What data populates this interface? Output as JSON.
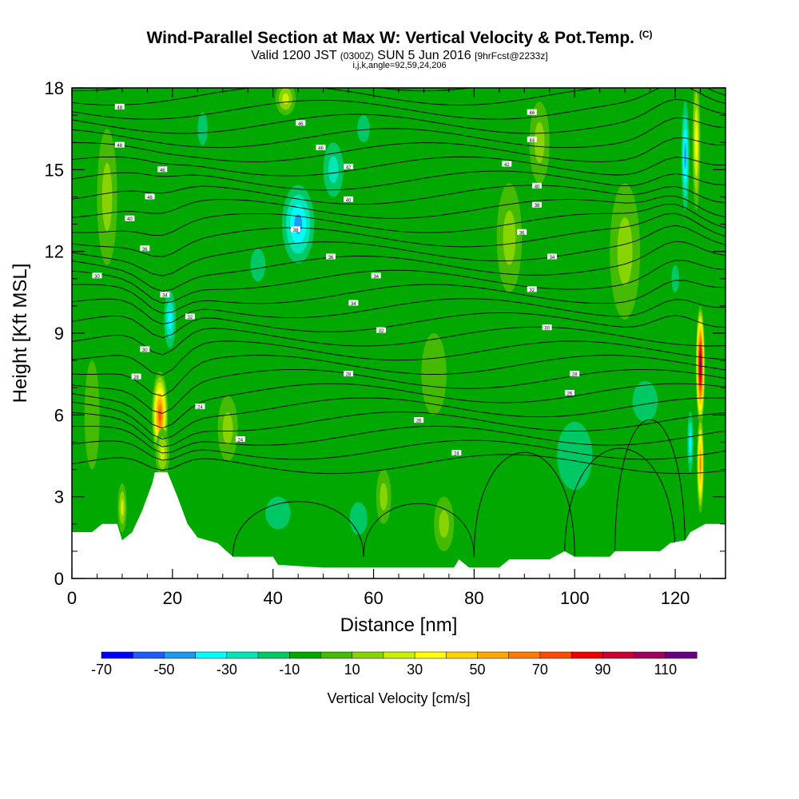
{
  "chart_data": {
    "type": "heatmap",
    "title_main": "Wind-Parallel Section at Max W: Vertical Velocity & Pot.Temp.",
    "title_mark": "(C)",
    "subtitle_valid": "Valid 1200 JST",
    "subtitle_utc": "(0300Z)",
    "subtitle_date": "SUN 5 Jun 2016",
    "subtitle_fcst": "[9hrFcst@2233z]",
    "subtitle_params": "i,j,k,angle=92,59,24,206",
    "xlabel": "Distance [nm]",
    "ylabel": "Height [Kft MSL]",
    "xlim": [
      0,
      130
    ],
    "ylim": [
      0,
      18
    ],
    "x_ticks": [
      "0",
      "20",
      "40",
      "60",
      "80",
      "100",
      "120"
    ],
    "y_ticks": [
      "0",
      "3",
      "6",
      "9",
      "12",
      "15",
      "18"
    ],
    "colorbar": {
      "label": "Vertical Velocity [cm/s]",
      "levels": [
        -70,
        -60,
        -50,
        -40,
        -30,
        -20,
        -10,
        0,
        10,
        20,
        30,
        40,
        50,
        60,
        70,
        80,
        90,
        100,
        110,
        120
      ],
      "tick_labels": [
        "-70",
        "-50",
        "-30",
        "-10",
        "10",
        "30",
        "50",
        "70",
        "90",
        "110"
      ],
      "colors": [
        "#0000ff",
        "#1e5cff",
        "#1a9af0",
        "#00ffff",
        "#00e6b4",
        "#00c864",
        "#00a800",
        "#44bb00",
        "#88d400",
        "#ccee00",
        "#ffff00",
        "#ffd200",
        "#ffa800",
        "#ff7a00",
        "#ff4a00",
        "#ee0000",
        "#cc0030",
        "#a0005a",
        "#6a0080"
      ]
    },
    "terrain_kft": [
      [
        0,
        1.7
      ],
      [
        4,
        1.7
      ],
      [
        6,
        2.0
      ],
      [
        9,
        2.0
      ],
      [
        10,
        1.4
      ],
      [
        12,
        1.7
      ],
      [
        14,
        2.5
      ],
      [
        15,
        3.0
      ],
      [
        16,
        3.5
      ],
      [
        16.5,
        3.9
      ],
      [
        19,
        3.9
      ],
      [
        21,
        3.0
      ],
      [
        23,
        2.0
      ],
      [
        25,
        1.5
      ],
      [
        29,
        1.3
      ],
      [
        32,
        0.8
      ],
      [
        40,
        0.8
      ],
      [
        41,
        0.5
      ],
      [
        50,
        0.4
      ],
      [
        70,
        0.4
      ],
      [
        76,
        0.4
      ],
      [
        77,
        0.7
      ],
      [
        79,
        0.4
      ],
      [
        85,
        0.4
      ],
      [
        87,
        0.7
      ],
      [
        95,
        0.7
      ],
      [
        98,
        1.0
      ],
      [
        100,
        0.8
      ],
      [
        107,
        0.8
      ],
      [
        108,
        1.0
      ],
      [
        117,
        1.0
      ],
      [
        119,
        1.3
      ],
      [
        122,
        1.4
      ],
      [
        123,
        1.7
      ],
      [
        126,
        2.0
      ],
      [
        130,
        2.0
      ]
    ],
    "vertical_velocity_features": [
      {
        "x": 17.5,
        "y": 6.0,
        "dx": 1.6,
        "dy": 1.6,
        "w": 75
      },
      {
        "x": 18.0,
        "y": 4.6,
        "dx": 1.4,
        "dy": 0.9,
        "w": 25
      },
      {
        "x": 10.0,
        "y": 2.6,
        "dx": 0.9,
        "dy": 0.9,
        "w": 30
      },
      {
        "x": 19.5,
        "y": 9.5,
        "dx": 1.6,
        "dy": 1.4,
        "w": -35
      },
      {
        "x": 45.0,
        "y": 13.0,
        "dx": 4.0,
        "dy": 1.8,
        "w": -45
      },
      {
        "x": 52.0,
        "y": 15.0,
        "dx": 3.0,
        "dy": 1.5,
        "w": -28
      },
      {
        "x": 37.0,
        "y": 11.5,
        "dx": 3.0,
        "dy": 1.2,
        "w": -20
      },
      {
        "x": 26.0,
        "y": 16.5,
        "dx": 2.0,
        "dy": 1.2,
        "w": -15
      },
      {
        "x": 58.0,
        "y": 16.5,
        "dx": 2.5,
        "dy": 1.0,
        "w": -15
      },
      {
        "x": 42.5,
        "y": 17.6,
        "dx": 2.0,
        "dy": 0.6,
        "w": 25
      },
      {
        "x": 125.0,
        "y": 7.8,
        "dx": 0.9,
        "dy": 2.2,
        "w": 115
      },
      {
        "x": 125.0,
        "y": 4.2,
        "dx": 0.7,
        "dy": 1.8,
        "w": 70
      },
      {
        "x": 124.2,
        "y": 16.0,
        "dx": 0.8,
        "dy": 2.5,
        "w": 40
      },
      {
        "x": 122.0,
        "y": 15.5,
        "dx": 1.0,
        "dy": 2.5,
        "w": -45
      },
      {
        "x": 123.0,
        "y": 5.0,
        "dx": 0.8,
        "dy": 1.5,
        "w": -35
      },
      {
        "x": 120.0,
        "y": 11.0,
        "dx": 1.5,
        "dy": 1.0,
        "w": -15
      },
      {
        "x": 100.0,
        "y": 4.5,
        "dx": 7.0,
        "dy": 2.5,
        "w": -18
      },
      {
        "x": 114.0,
        "y": 6.5,
        "dx": 5.0,
        "dy": 1.5,
        "w": -18
      },
      {
        "x": 41.0,
        "y": 2.4,
        "dx": 5.0,
        "dy": 1.2,
        "w": -15
      },
      {
        "x": 57.0,
        "y": 2.2,
        "dx": 3.5,
        "dy": 1.2,
        "w": -15
      },
      {
        "x": 74.0,
        "y": 2.0,
        "dx": 2.0,
        "dy": 1.0,
        "w": 12
      },
      {
        "x": 62.0,
        "y": 3.0,
        "dx": 1.5,
        "dy": 1.0,
        "w": 12
      },
      {
        "x": 31.0,
        "y": 5.5,
        "dx": 2.0,
        "dy": 1.2,
        "w": 12
      },
      {
        "x": 72.0,
        "y": 7.5,
        "dx": 2.5,
        "dy": 1.5,
        "w": 10
      },
      {
        "x": 87.0,
        "y": 12.5,
        "dx": 2.5,
        "dy": 2.0,
        "w": 12
      },
      {
        "x": 93.0,
        "y": 16.0,
        "dx": 2.0,
        "dy": 1.5,
        "w": 12
      },
      {
        "x": 7.0,
        "y": 14.0,
        "dx": 2.0,
        "dy": 2.5,
        "w": 12
      },
      {
        "x": 110.0,
        "y": 12.0,
        "dx": 3.0,
        "dy": 2.5,
        "w": 12
      },
      {
        "x": 4.0,
        "y": 6.0,
        "dx": 1.5,
        "dy": 2.0,
        "w": 10
      }
    ],
    "isentrope_labels": [
      {
        "x": 9.5,
        "y": 17.3,
        "t": "48"
      },
      {
        "x": 9.5,
        "y": 15.9,
        "t": "48"
      },
      {
        "x": 18.0,
        "y": 15.0,
        "t": "46"
      },
      {
        "x": 15.5,
        "y": 14.0,
        "t": "46"
      },
      {
        "x": 11.5,
        "y": 13.2,
        "t": "40"
      },
      {
        "x": 14.5,
        "y": 12.1,
        "t": "36"
      },
      {
        "x": 5.0,
        "y": 11.1,
        "t": "30"
      },
      {
        "x": 18.5,
        "y": 10.4,
        "t": "34"
      },
      {
        "x": 23.5,
        "y": 9.6,
        "t": "32"
      },
      {
        "x": 14.5,
        "y": 8.4,
        "t": "30"
      },
      {
        "x": 12.8,
        "y": 7.4,
        "t": "28"
      },
      {
        "x": 25.5,
        "y": 6.3,
        "t": "24"
      },
      {
        "x": 33.5,
        "y": 5.1,
        "t": "24"
      },
      {
        "x": 45.5,
        "y": 16.7,
        "t": "46"
      },
      {
        "x": 49.5,
        "y": 15.8,
        "t": "46"
      },
      {
        "x": 55.0,
        "y": 15.1,
        "t": "42"
      },
      {
        "x": 55.0,
        "y": 13.9,
        "t": "40"
      },
      {
        "x": 44.5,
        "y": 12.8,
        "t": "38"
      },
      {
        "x": 51.5,
        "y": 11.8,
        "t": "36"
      },
      {
        "x": 60.5,
        "y": 11.1,
        "t": "34"
      },
      {
        "x": 56.0,
        "y": 10.1,
        "t": "34"
      },
      {
        "x": 61.5,
        "y": 9.1,
        "t": "32"
      },
      {
        "x": 55.0,
        "y": 7.5,
        "t": "28"
      },
      {
        "x": 69.0,
        "y": 5.8,
        "t": "26"
      },
      {
        "x": 76.5,
        "y": 4.6,
        "t": "24"
      },
      {
        "x": 91.5,
        "y": 17.1,
        "t": "46"
      },
      {
        "x": 91.5,
        "y": 16.1,
        "t": "44"
      },
      {
        "x": 86.5,
        "y": 15.2,
        "t": "42"
      },
      {
        "x": 92.5,
        "y": 14.4,
        "t": "40"
      },
      {
        "x": 92.5,
        "y": 13.7,
        "t": "38"
      },
      {
        "x": 89.5,
        "y": 12.7,
        "t": "36"
      },
      {
        "x": 95.5,
        "y": 11.8,
        "t": "34"
      },
      {
        "x": 91.5,
        "y": 10.6,
        "t": "32"
      },
      {
        "x": 94.5,
        "y": 9.2,
        "t": "30"
      },
      {
        "x": 100.0,
        "y": 7.5,
        "t": "28"
      },
      {
        "x": 99.0,
        "y": 6.8,
        "t": "26"
      }
    ]
  }
}
